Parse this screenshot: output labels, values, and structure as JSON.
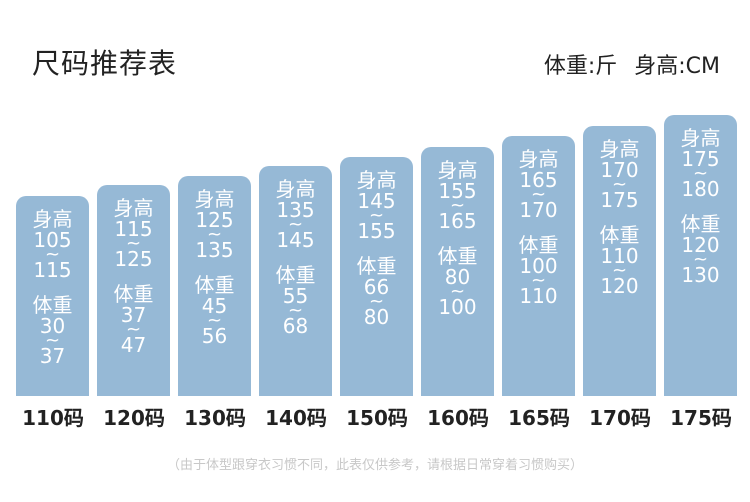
{
  "title": "尺码推荐表",
  "units": {
    "weight": "体重:斤",
    "height": "身高:CM"
  },
  "labels": {
    "height": "身高",
    "weight": "体重",
    "tilde": "~"
  },
  "columns": [
    {
      "size": "110码",
      "height_min": "105",
      "height_max": "115",
      "weight_min": "30",
      "weight_max": "37"
    },
    {
      "size": "120码",
      "height_min": "115",
      "height_max": "125",
      "weight_min": "37",
      "weight_max": "47"
    },
    {
      "size": "130码",
      "height_min": "125",
      "height_max": "135",
      "weight_min": "45",
      "weight_max": "56"
    },
    {
      "size": "140码",
      "height_min": "135",
      "height_max": "145",
      "weight_min": "55",
      "weight_max": "68"
    },
    {
      "size": "150码",
      "height_min": "145",
      "height_max": "155",
      "weight_min": "66",
      "weight_max": "80"
    },
    {
      "size": "160码",
      "height_min": "155",
      "height_max": "165",
      "weight_min": "80",
      "weight_max": "100"
    },
    {
      "size": "165码",
      "height_min": "165",
      "height_max": "170",
      "weight_min": "100",
      "weight_max": "110"
    },
    {
      "size": "170码",
      "height_min": "170",
      "height_max": "175",
      "weight_min": "110",
      "weight_max": "120"
    },
    {
      "size": "175码",
      "height_min": "175",
      "height_max": "180",
      "weight_min": "120",
      "weight_max": "130"
    }
  ],
  "note": "（由于体型跟穿衣习惯不同，此表仅供参考，请根据日常穿着习惯购买）",
  "colors": {
    "bar": "#96b9d6",
    "bar_text": "#ffffff"
  }
}
